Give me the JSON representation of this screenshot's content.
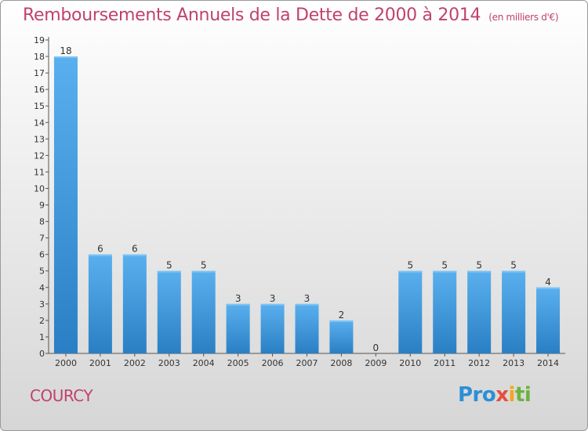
{
  "title": "Remboursements Annuels de la Dette de 2000 à 2014",
  "unit": "(en milliers d'€)",
  "commune": "COURCY",
  "logo": "Proxiti",
  "colors": {
    "title": "#c0426b",
    "bar_light": "#5ab0ee",
    "bar_dark": "#2a7fc4"
  },
  "chart_data": {
    "type": "bar",
    "title": "Remboursements Annuels de la Dette de 2000 à 2014",
    "categories": [
      "2000",
      "2001",
      "2002",
      "2003",
      "2004",
      "2005",
      "2006",
      "2007",
      "2008",
      "2009",
      "2010",
      "2011",
      "2012",
      "2013",
      "2014"
    ],
    "values": [
      18,
      6,
      6,
      5,
      5,
      3,
      3,
      3,
      2,
      0,
      5,
      5,
      5,
      5,
      4
    ],
    "ylim": [
      0,
      19
    ],
    "yticks": [
      0,
      1,
      2,
      3,
      4,
      5,
      6,
      7,
      8,
      9,
      10,
      11,
      12,
      13,
      14,
      15,
      16,
      17,
      18,
      19
    ],
    "grid": false,
    "legend": "none"
  }
}
